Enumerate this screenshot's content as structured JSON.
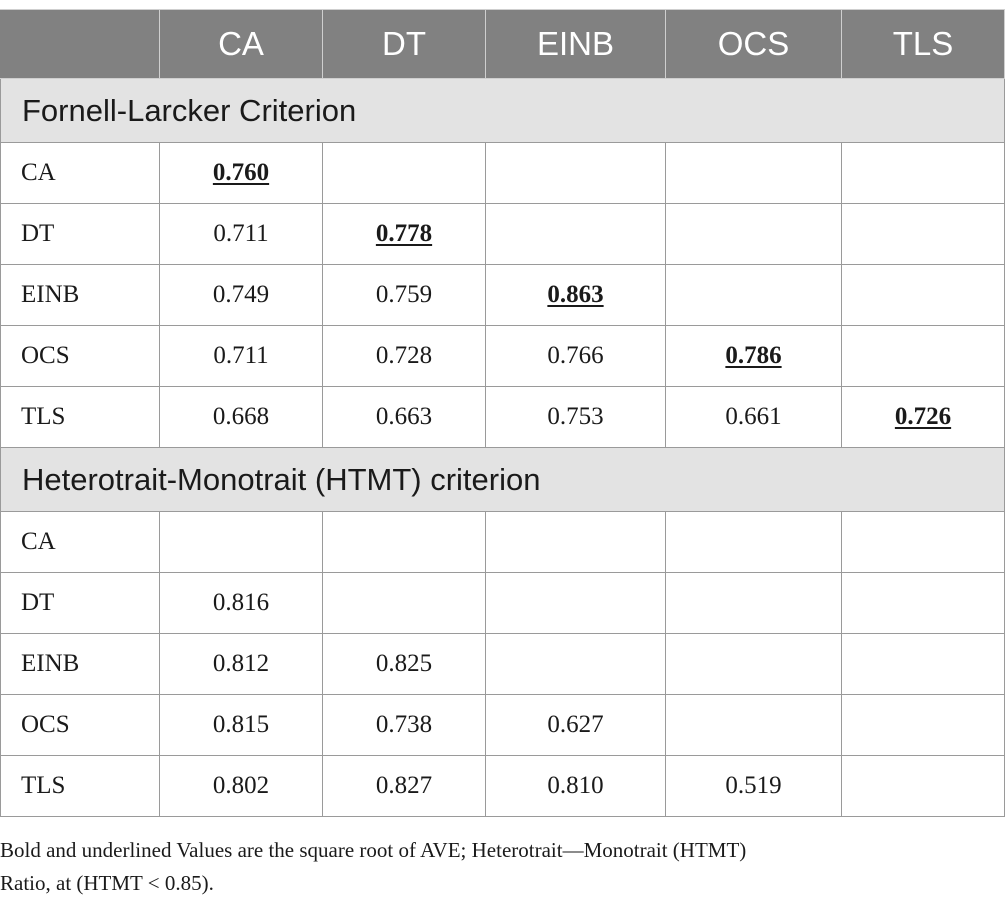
{
  "table": {
    "columns": [
      "",
      "CA",
      "DT",
      "EINB",
      "OCS",
      "TLS"
    ],
    "sections": [
      {
        "title": "Fornell-Larcker Criterion",
        "rows": [
          {
            "label": "CA",
            "values": [
              "0.760",
              "",
              "",
              "",
              ""
            ]
          },
          {
            "label": "DT",
            "values": [
              "0.711",
              "0.778",
              "",
              "",
              ""
            ]
          },
          {
            "label": "EINB",
            "values": [
              "0.749",
              "0.759",
              "0.863",
              "",
              ""
            ]
          },
          {
            "label": "OCS",
            "values": [
              "0.711",
              "0.728",
              "0.766",
              "0.786",
              ""
            ]
          },
          {
            "label": "TLS",
            "values": [
              "0.668",
              "0.663",
              "0.753",
              "0.661",
              "0.726"
            ]
          }
        ]
      },
      {
        "title": "Heterotrait-Monotrait (HTMT) criterion",
        "rows": [
          {
            "label": "CA",
            "values": [
              "",
              "",
              "",
              "",
              ""
            ]
          },
          {
            "label": "DT",
            "values": [
              "0.816",
              "",
              "",
              "",
              ""
            ]
          },
          {
            "label": "EINB",
            "values": [
              "0.812",
              "0.825",
              "",
              "",
              ""
            ]
          },
          {
            "label": "OCS",
            "values": [
              "0.815",
              "0.738",
              "0.627",
              "",
              ""
            ]
          },
          {
            "label": "TLS",
            "values": [
              "0.802",
              "0.827",
              "0.810",
              "0.519",
              ""
            ]
          }
        ]
      }
    ]
  },
  "footnote": {
    "line1": "Bold and underlined Values are the square root of AVE; Heterotrait—Monotrait (HTMT)",
    "line2": "Ratio, at (HTMT < 0.85)."
  }
}
